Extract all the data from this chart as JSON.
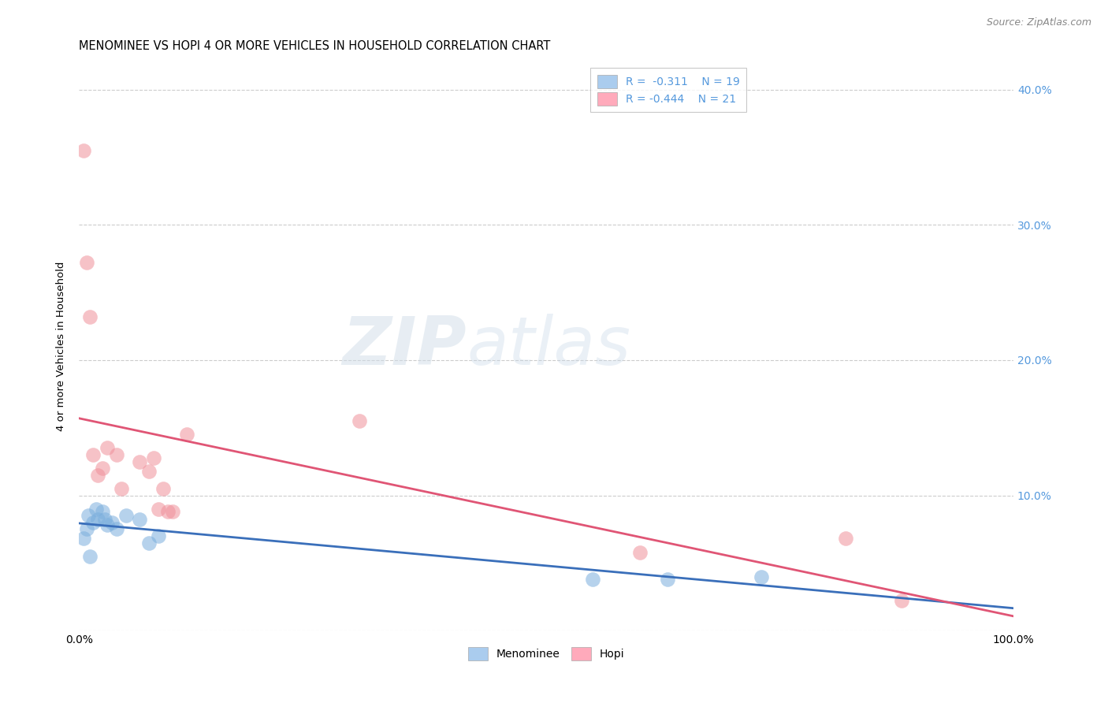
{
  "title": "MENOMINEE VS HOPI 4 OR MORE VEHICLES IN HOUSEHOLD CORRELATION CHART",
  "source": "Source: ZipAtlas.com",
  "ylabel": "4 or more Vehicles in Household",
  "xlabel": "",
  "watermark_zip": "ZIP",
  "watermark_atlas": "atlas",
  "menominee_r": "-0.311",
  "menominee_n": "19",
  "hopi_r": "-0.444",
  "hopi_n": "21",
  "menominee_color": "#7aaedd",
  "hopi_color": "#f0909a",
  "menominee_line_color": "#3a6fba",
  "hopi_line_color": "#e05575",
  "xlim": [
    0.0,
    1.0
  ],
  "ylim": [
    0.0,
    0.42
  ],
  "xtick_positions": [
    0.0,
    0.1,
    0.2,
    0.3,
    0.4,
    0.5,
    0.6,
    0.7,
    0.8,
    0.9,
    1.0
  ],
  "xtick_labels": [
    "0.0%",
    "",
    "",
    "",
    "",
    "",
    "",
    "",
    "",
    "",
    "100.0%"
  ],
  "ytick_positions": [
    0.0,
    0.1,
    0.2,
    0.3,
    0.4
  ],
  "ytick_labels_left": [
    "",
    "",
    "",
    "",
    ""
  ],
  "ytick_labels_right": [
    "",
    "10.0%",
    "20.0%",
    "30.0%",
    "40.0%"
  ],
  "menominee_x": [
    0.005,
    0.008,
    0.01,
    0.012,
    0.015,
    0.018,
    0.02,
    0.025,
    0.028,
    0.03,
    0.035,
    0.04,
    0.05,
    0.065,
    0.075,
    0.085,
    0.55,
    0.63,
    0.73
  ],
  "menominee_y": [
    0.068,
    0.075,
    0.085,
    0.055,
    0.08,
    0.09,
    0.082,
    0.088,
    0.082,
    0.078,
    0.08,
    0.075,
    0.085,
    0.082,
    0.065,
    0.07,
    0.038,
    0.038,
    0.04
  ],
  "hopi_x": [
    0.005,
    0.008,
    0.012,
    0.015,
    0.02,
    0.025,
    0.03,
    0.04,
    0.045,
    0.065,
    0.075,
    0.08,
    0.085,
    0.09,
    0.095,
    0.1,
    0.115,
    0.3,
    0.6,
    0.82,
    0.88
  ],
  "hopi_y": [
    0.355,
    0.272,
    0.232,
    0.13,
    0.115,
    0.12,
    0.135,
    0.13,
    0.105,
    0.125,
    0.118,
    0.128,
    0.09,
    0.105,
    0.088,
    0.088,
    0.145,
    0.155,
    0.058,
    0.068,
    0.022
  ],
  "legend_color_blue": "#aaccee",
  "legend_color_pink": "#ffaabb",
  "title_fontsize": 10.5,
  "axis_label_fontsize": 9.5,
  "tick_fontsize": 10,
  "legend_fontsize": 10,
  "right_tick_color": "#5599dd",
  "grid_color": "#cccccc",
  "background_color": "#ffffff"
}
